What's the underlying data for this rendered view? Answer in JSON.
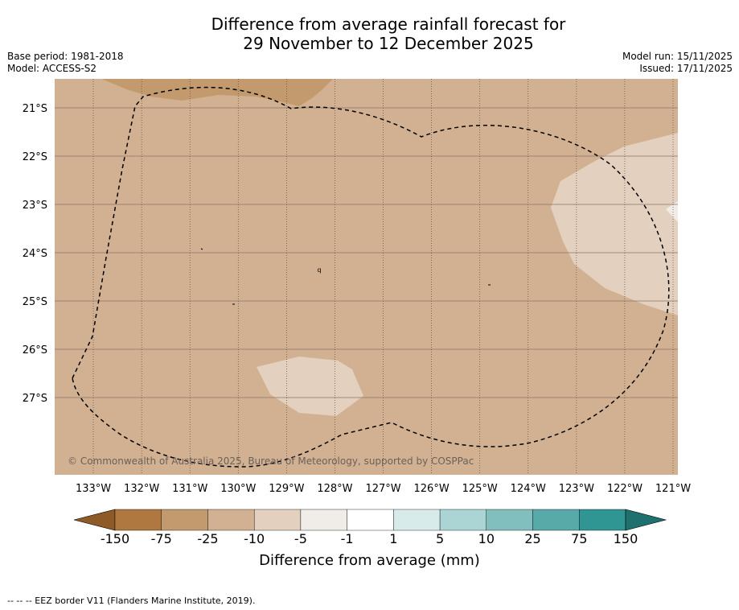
{
  "title": {
    "line1": "Difference from average rainfall forecast for",
    "line2": "29 November to 12 December 2025"
  },
  "meta_left": {
    "base_period": "Base period: 1981-2018",
    "model": "Model: ACCESS-S2"
  },
  "meta_right": {
    "model_run": "Model run: 15/11/2025",
    "issued": "Issued: 17/11/2025"
  },
  "map": {
    "lat_labels": [
      "21°S",
      "22°S",
      "23°S",
      "24°S",
      "25°S",
      "26°S",
      "27°S"
    ],
    "lon_labels": [
      "133°W",
      "132°W",
      "131°W",
      "130°W",
      "129°W",
      "128°W",
      "127°W",
      "126°W",
      "125°W",
      "124°W",
      "123°W",
      "122°W",
      "121°W"
    ],
    "lat_range": [
      -28.6,
      -20.4
    ],
    "lon_range": [
      -133.8,
      -120.9
    ],
    "copyright": "© Commonwealth of Australia 2025, Bureau of Meteorology, supported by COSPPac",
    "island_mark": "q"
  },
  "colorbar": {
    "title": "Difference from average (mm)",
    "tick_labels": [
      "-150",
      "-75",
      "-25",
      "-10",
      "-5",
      "-1",
      "1",
      "5",
      "10",
      "25",
      "75",
      "150"
    ],
    "colors": [
      "#8e5a28",
      "#ae7840",
      "#c29a6d",
      "#d2b192",
      "#e3d0be",
      "#f0ece7",
      "#ffffff",
      "#d6ebea",
      "#aad5d4",
      "#80bfbe",
      "#58aaa9",
      "#2f9693",
      "#1f716f"
    ],
    "background_color": "#d2b192"
  },
  "footer": "-- -- -- EEZ border V11 (Flanders Marine Institute, 2019)."
}
